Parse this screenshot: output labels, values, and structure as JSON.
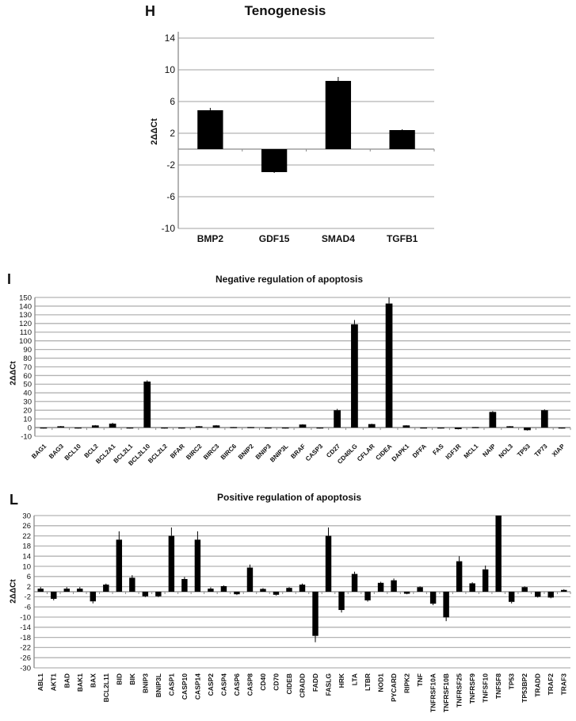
{
  "chart_data": [
    {
      "panel": "H",
      "type": "bar",
      "title": "Tenogenesis",
      "xlabel": "",
      "ylabel": "2ΔΔCt",
      "ylim": [
        -10,
        14
      ],
      "yticks": [
        14,
        10,
        6,
        2,
        -2,
        -6,
        -10
      ],
      "grid": true,
      "legend": null,
      "categories": [
        "BMP2",
        "GDF15",
        "SMAD4",
        "TGFB1"
      ],
      "values": [
        4.9,
        -2.9,
        8.6,
        2.4
      ],
      "errors": [
        0.3,
        0.1,
        0.5,
        0.1
      ]
    },
    {
      "panel": "I",
      "type": "bar",
      "title": "Negative regulation of apoptosis",
      "xlabel": "",
      "ylabel": "2ΔΔCt",
      "ylim": [
        -10,
        150
      ],
      "yticks": [
        150,
        140,
        130,
        120,
        110,
        100,
        90,
        80,
        70,
        60,
        50,
        40,
        30,
        20,
        10,
        0,
        -10
      ],
      "grid": true,
      "legend": null,
      "categories": [
        "BAG1",
        "BAG3",
        "BCL10",
        "BCL2",
        "BCL2A1",
        "BCL2L1",
        "BCL2L10",
        "BCL2L2",
        "BFAR",
        "BIRC2",
        "BIRC3",
        "BIRC6",
        "BNIP2",
        "BNIP3",
        "BNIP3L",
        "BRAF",
        "CASP3",
        "CD27",
        "CD40LG",
        "CFLAR",
        "CIDEA",
        "DAPK1",
        "DFFA",
        "FAS",
        "IGF1R",
        "MCL1",
        "NAIP",
        "NOL3",
        "TP53",
        "TP73",
        "XIAP"
      ],
      "values": [
        -1,
        1.5,
        -1,
        2.5,
        4.5,
        -1,
        53,
        -1,
        -1,
        1.5,
        2.5,
        0.5,
        0.5,
        -1,
        -1,
        3.5,
        -1,
        20,
        119,
        4,
        143,
        2.5,
        -0.3,
        -1,
        -1.8,
        0.5,
        18,
        1.5,
        -3,
        20,
        -1
      ],
      "errors": [
        0.2,
        0.3,
        0.2,
        0.4,
        1,
        0.2,
        1.5,
        0.2,
        0.2,
        0.3,
        0.4,
        0.1,
        0.1,
        0.2,
        0.2,
        0.5,
        0.2,
        1.5,
        5,
        0.5,
        7,
        0.3,
        0.1,
        0.2,
        0.3,
        0.1,
        1,
        0.2,
        0.5,
        1,
        0.2
      ]
    },
    {
      "panel": "L",
      "type": "bar",
      "title": "Positive regulation of apoptosis",
      "xlabel": "",
      "ylabel": "2ΔΔCt",
      "ylim": [
        -30,
        30
      ],
      "yticks": [
        30,
        26,
        22,
        18,
        14,
        10,
        6,
        2,
        -2,
        -6,
        -10,
        -14,
        -18,
        -22,
        -26,
        -30
      ],
      "grid": true,
      "legend": null,
      "categories": [
        "ABL1",
        "AKT1",
        "BAD",
        "BAK1",
        "BAX",
        "BCL2L11",
        "BID",
        "BIK",
        "BNIP3",
        "BNIP3L",
        "CASP1",
        "CASP10",
        "CASP14",
        "CASP2",
        "CASP4",
        "CASP6",
        "CASP8",
        "CD40",
        "CD70",
        "CIDEB",
        "CRADD",
        "FADD",
        "FASLG",
        "HRK",
        "LTA",
        "LTBR",
        "NOD1",
        "PYCARD",
        "RIPK2",
        "TNF",
        "TNFRSF10A",
        "TNFRSF10B",
        "TNFRSF25",
        "TNFRSF9",
        "TNFSF10",
        "TNFSF8",
        "TP53",
        "TP53BP2",
        "TRADD",
        "TRAF2",
        "TRAF3"
      ],
      "values": [
        1.2,
        -2.8,
        1.2,
        1.2,
        -3.8,
        2.8,
        20.5,
        5.5,
        -1.8,
        -1.8,
        22,
        5,
        20.5,
        1.2,
        2.2,
        -1,
        9.5,
        1.1,
        -1.2,
        1.5,
        2.8,
        -17.4,
        22,
        -7.2,
        7,
        -3.4,
        3.5,
        4.5,
        -0.8,
        1.8,
        -4.7,
        -10.1,
        12,
        3.3,
        8.8,
        30,
        -4,
        1.8,
        -2,
        -2.3,
        0.7
      ],
      "errors": [
        0.6,
        0.6,
        0.6,
        0.6,
        0.8,
        0.4,
        3.3,
        1,
        0.3,
        0.3,
        3.3,
        0.8,
        3.3,
        0.5,
        0.3,
        0.3,
        1.2,
        0.3,
        0.3,
        0.3,
        0.4,
        2.5,
        3.3,
        1,
        0.9,
        0.5,
        0.4,
        0.7,
        0.2,
        0.3,
        0.6,
        1.5,
        2,
        0.4,
        1.5,
        0,
        0.6,
        0.3,
        0.3,
        0.3,
        0.3
      ]
    }
  ],
  "panels": {
    "H": {
      "letter": "H",
      "title": "Tenogenesis",
      "ylabel": "2ΔΔCt"
    },
    "I": {
      "letter": "I",
      "title": "Negative regulation of apoptosis",
      "ylabel": "2ΔΔCt"
    },
    "L": {
      "letter": "L",
      "title": "Positive regulation of apoptosis",
      "ylabel": "2ΔΔCt"
    }
  },
  "colors": {
    "bar": "#000000",
    "grid": "#b3b3b3",
    "axis": "#8c8c8c",
    "text": "#111111"
  }
}
